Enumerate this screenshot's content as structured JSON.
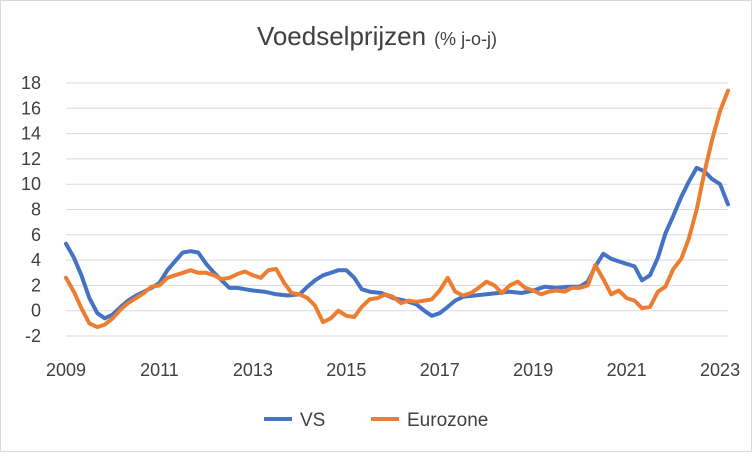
{
  "chart_data": {
    "type": "line",
    "title": "Voedselprijzen",
    "subtitle": "(% j-o-j)",
    "xlabel": "",
    "ylabel": "",
    "ylim": [
      -2,
      18
    ],
    "yticks": [
      "-2",
      "0",
      "2",
      "4",
      "6",
      "8",
      "10",
      "12",
      "14",
      "16",
      "18"
    ],
    "xlim": [
      2009,
      2023.17
    ],
    "xticks": [
      "2009",
      "2011",
      "2013",
      "2015",
      "2017",
      "2019",
      "2021",
      "2023"
    ],
    "grid": "horizontal",
    "legend_position": "bottom",
    "series": [
      {
        "name": "VS",
        "color": "#4472C4",
        "x": [
          2009.0,
          2009.17,
          2009.33,
          2009.5,
          2009.67,
          2009.83,
          2010.0,
          2010.17,
          2010.33,
          2010.5,
          2010.67,
          2010.83,
          2011.0,
          2011.17,
          2011.33,
          2011.5,
          2011.67,
          2011.83,
          2012.0,
          2012.17,
          2012.33,
          2012.5,
          2012.67,
          2012.83,
          2013.0,
          2013.25,
          2013.5,
          2013.75,
          2014.0,
          2014.17,
          2014.33,
          2014.5,
          2014.67,
          2014.83,
          2015.0,
          2015.17,
          2015.33,
          2015.5,
          2015.75,
          2016.0,
          2016.25,
          2016.5,
          2016.67,
          2016.83,
          2017.0,
          2017.17,
          2017.33,
          2017.5,
          2017.75,
          2018.0,
          2018.25,
          2018.5,
          2018.75,
          2019.0,
          2019.25,
          2019.5,
          2019.75,
          2020.0,
          2020.17,
          2020.33,
          2020.5,
          2020.67,
          2020.83,
          2021.0,
          2021.17,
          2021.33,
          2021.5,
          2021.67,
          2021.83,
          2022.0,
          2022.17,
          2022.33,
          2022.5,
          2022.67,
          2022.83,
          2023.0,
          2023.17
        ],
        "values": [
          5.3,
          4.2,
          2.8,
          1.0,
          -0.2,
          -0.6,
          -0.3,
          0.3,
          0.8,
          1.2,
          1.5,
          1.8,
          2.2,
          3.2,
          3.9,
          4.6,
          4.7,
          4.6,
          3.7,
          3.0,
          2.4,
          1.8,
          1.8,
          1.7,
          1.6,
          1.5,
          1.3,
          1.2,
          1.3,
          1.9,
          2.4,
          2.8,
          3.0,
          3.2,
          3.2,
          2.6,
          1.7,
          1.5,
          1.4,
          1.0,
          0.8,
          0.5,
          0.0,
          -0.4,
          -0.2,
          0.3,
          0.8,
          1.1,
          1.2,
          1.3,
          1.4,
          1.5,
          1.4,
          1.6,
          1.9,
          1.8,
          1.9,
          1.9,
          2.3,
          3.5,
          4.5,
          4.1,
          3.9,
          3.7,
          3.5,
          2.4,
          2.8,
          4.2,
          6.1,
          7.5,
          9.0,
          10.2,
          11.3,
          11.0,
          10.4,
          10.0,
          8.4
        ]
      },
      {
        "name": "Eurozone",
        "color": "#ED7D31",
        "x": [
          2009.0,
          2009.17,
          2009.33,
          2009.5,
          2009.67,
          2009.83,
          2010.0,
          2010.17,
          2010.33,
          2010.5,
          2010.67,
          2010.83,
          2011.0,
          2011.17,
          2011.33,
          2011.5,
          2011.67,
          2011.83,
          2012.0,
          2012.17,
          2012.33,
          2012.5,
          2012.67,
          2012.83,
          2013.0,
          2013.17,
          2013.33,
          2013.5,
          2013.67,
          2013.83,
          2014.0,
          2014.17,
          2014.33,
          2014.5,
          2014.67,
          2014.83,
          2015.0,
          2015.17,
          2015.33,
          2015.5,
          2015.67,
          2015.83,
          2016.0,
          2016.17,
          2016.33,
          2016.5,
          2016.67,
          2016.83,
          2017.0,
          2017.17,
          2017.33,
          2017.5,
          2017.67,
          2017.83,
          2018.0,
          2018.17,
          2018.33,
          2018.5,
          2018.67,
          2018.83,
          2019.0,
          2019.17,
          2019.33,
          2019.5,
          2019.67,
          2019.83,
          2020.0,
          2020.17,
          2020.33,
          2020.5,
          2020.67,
          2020.83,
          2021.0,
          2021.17,
          2021.33,
          2021.5,
          2021.67,
          2021.83,
          2022.0,
          2022.17,
          2022.33,
          2022.5,
          2022.67,
          2022.83,
          2023.0,
          2023.17
        ],
        "values": [
          2.6,
          1.5,
          0.2,
          -1.0,
          -1.3,
          -1.1,
          -0.6,
          0.1,
          0.6,
          1.0,
          1.4,
          1.9,
          2.0,
          2.6,
          2.8,
          3.0,
          3.2,
          3.0,
          3.0,
          2.8,
          2.5,
          2.6,
          2.9,
          3.1,
          2.8,
          2.6,
          3.2,
          3.3,
          2.2,
          1.4,
          1.3,
          1.0,
          0.4,
          -0.9,
          -0.6,
          0.0,
          -0.4,
          -0.5,
          0.3,
          0.9,
          1.0,
          1.3,
          1.1,
          0.6,
          0.8,
          0.7,
          0.8,
          0.9,
          1.6,
          2.6,
          1.5,
          1.2,
          1.4,
          1.8,
          2.3,
          2.0,
          1.4,
          2.0,
          2.3,
          1.8,
          1.6,
          1.3,
          1.5,
          1.6,
          1.5,
          1.8,
          1.8,
          2.0,
          3.6,
          2.5,
          1.3,
          1.6,
          1.0,
          0.8,
          0.2,
          0.3,
          1.5,
          1.9,
          3.3,
          4.1,
          5.7,
          8.0,
          11.0,
          13.5,
          15.8,
          17.4
        ]
      }
    ]
  }
}
